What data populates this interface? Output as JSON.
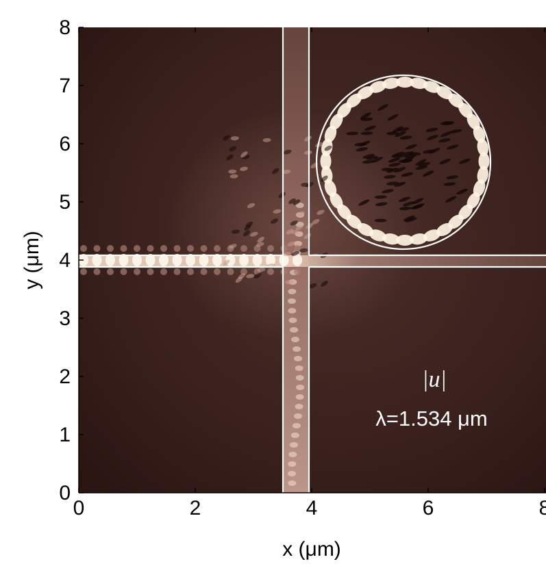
{
  "chart_data": {
    "type": "heatmap",
    "title": "",
    "xlabel": "x (μm)",
    "ylabel": "y (μm)",
    "xlim": [
      0,
      8
    ],
    "ylim": [
      0,
      8
    ],
    "x_ticks": [
      "0",
      "2",
      "4",
      "6",
      "8"
    ],
    "y_ticks": [
      "0",
      "1",
      "2",
      "3",
      "4",
      "5",
      "6",
      "7",
      "8"
    ],
    "colormap": [
      "#2a1412",
      "#4a2a26",
      "#6e4a44",
      "#a67c73",
      "#e6cdbb",
      "#fffaf0"
    ],
    "boundary_color": "#ffffff",
    "grid": false,
    "structures": {
      "horizontal_waveguide": {
        "y_range": [
          3.9,
          4.1
        ],
        "x_range": [
          0,
          8
        ]
      },
      "vertical_waveguide": {
        "x_range": [
          3.5,
          3.95
        ],
        "y_range": [
          0,
          8
        ]
      },
      "ring": {
        "center": [
          5.6,
          5.7
        ],
        "radius": 1.5
      }
    },
    "annotations": {
      "field_label": "|u|",
      "wavelength_label": "λ=1.534 μm"
    }
  }
}
